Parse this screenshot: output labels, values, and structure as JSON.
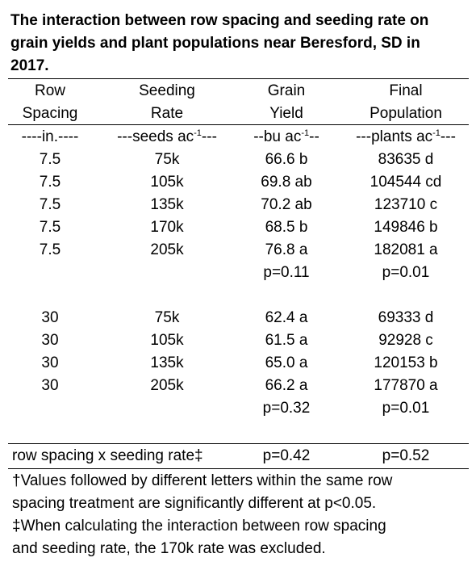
{
  "title_lines": [
    "The interaction between row spacing and seeding rate on",
    "grain yields and plant populations near Beresford, SD in",
    "2017."
  ],
  "table": {
    "headers": [
      [
        "Row",
        "Spacing"
      ],
      [
        "Seeding",
        "Rate"
      ],
      [
        "Grain",
        "Yield"
      ],
      [
        "Final",
        "Population"
      ]
    ],
    "units": [
      {
        "text": "----in.----"
      },
      {
        "text": "---seeds ac",
        "sup": "-1",
        "tail": "---"
      },
      {
        "text": "--bu ac",
        "sup": "-1",
        "tail": "--"
      },
      {
        "text": "---plants ac",
        "sup": "-1",
        "tail": "---"
      }
    ],
    "groups": [
      {
        "rows": [
          [
            "7.5",
            "75k",
            "66.6 b",
            "83635 d"
          ],
          [
            "7.5",
            "105k",
            "69.8 ab",
            "104544 cd"
          ],
          [
            "7.5",
            "135k",
            "70.2 ab",
            "123710 c"
          ],
          [
            "7.5",
            "170k",
            "68.5 b",
            "149846 b"
          ],
          [
            "7.5",
            "205k",
            "76.8 a",
            "182081 a"
          ]
        ],
        "p_values": [
          "p=0.11",
          "p=0.01"
        ]
      },
      {
        "rows": [
          [
            "30",
            "75k",
            "62.4 a",
            "69333 d"
          ],
          [
            "30",
            "105k",
            "61.5 a",
            "92928 c"
          ],
          [
            "30",
            "135k",
            "65.0 a",
            "120153 b"
          ],
          [
            "30",
            "205k",
            "66.2 a",
            "177870 a"
          ]
        ],
        "p_values": [
          "p=0.32",
          "p=0.01"
        ]
      }
    ],
    "interaction": {
      "label": "row spacing x seeding rate‡",
      "p_values": [
        "p=0.42",
        "p=0.52"
      ]
    }
  },
  "footnotes": [
    [
      "†Values followed by different letters within the same row",
      "spacing treatment are significantly different at p<0.05."
    ],
    [
      "‡When calculating the interaction between row spacing",
      "and seeding rate, the 170k rate was excluded."
    ]
  ]
}
